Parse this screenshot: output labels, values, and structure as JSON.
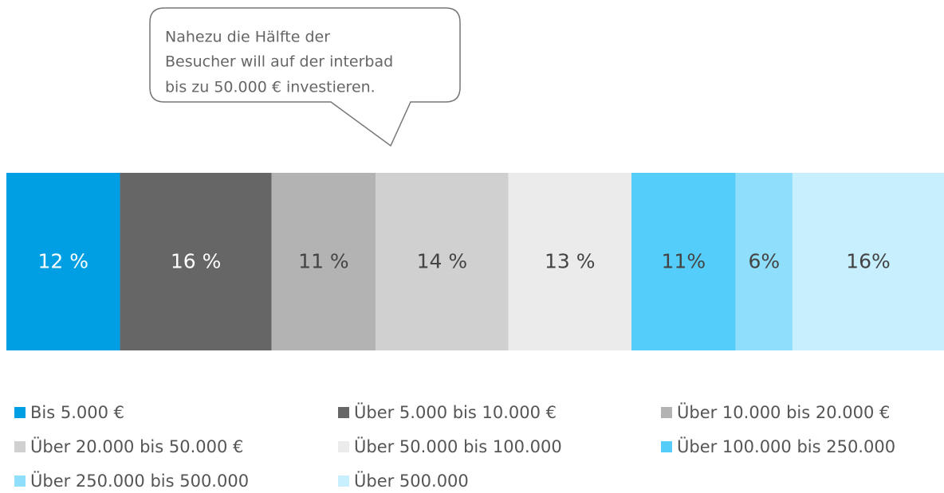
{
  "chart_data": {
    "type": "stacked-bar",
    "annotation": [
      "Nahezu die Hälfte der",
      "Besucher will auf der interbad",
      "bis zu 50.000 € investieren."
    ],
    "series": [
      {
        "name": "Bis 5.000 €",
        "color": "#009fe3",
        "values": [
          12
        ],
        "value_labels": [
          "12 %"
        ]
      },
      {
        "name": "Über 5.000 bis 10.000 €",
        "color": "#666666",
        "values": [
          16
        ],
        "value_labels": [
          "16 %"
        ]
      },
      {
        "name": "Über 10.000 bis 20.000 €",
        "color": "#b3b3b3",
        "values": [
          11
        ],
        "value_labels": [
          "11 %"
        ]
      },
      {
        "name": "Über 20.000 bis 50.000 €",
        "color": "#d0d0d0",
        "values": [
          14
        ],
        "value_labels": [
          "14 %"
        ]
      },
      {
        "name": "Über 50.000 bis 100.000",
        "color": "#ebebeb",
        "values": [
          13
        ],
        "value_labels": [
          "13 %"
        ]
      },
      {
        "name": "Über 100.000 bis 250.000",
        "color": "#55cdfb",
        "values": [
          11
        ],
        "value_labels": [
          "11%"
        ]
      },
      {
        "name": "Über 250.000 bis 500.000",
        "color": "#8fdefc",
        "values": [
          6
        ],
        "value_labels": [
          "6%"
        ]
      },
      {
        "name": "Über 500.000",
        "color": "#c7effd",
        "values": [
          16
        ],
        "value_labels": [
          "16%"
        ]
      }
    ]
  }
}
